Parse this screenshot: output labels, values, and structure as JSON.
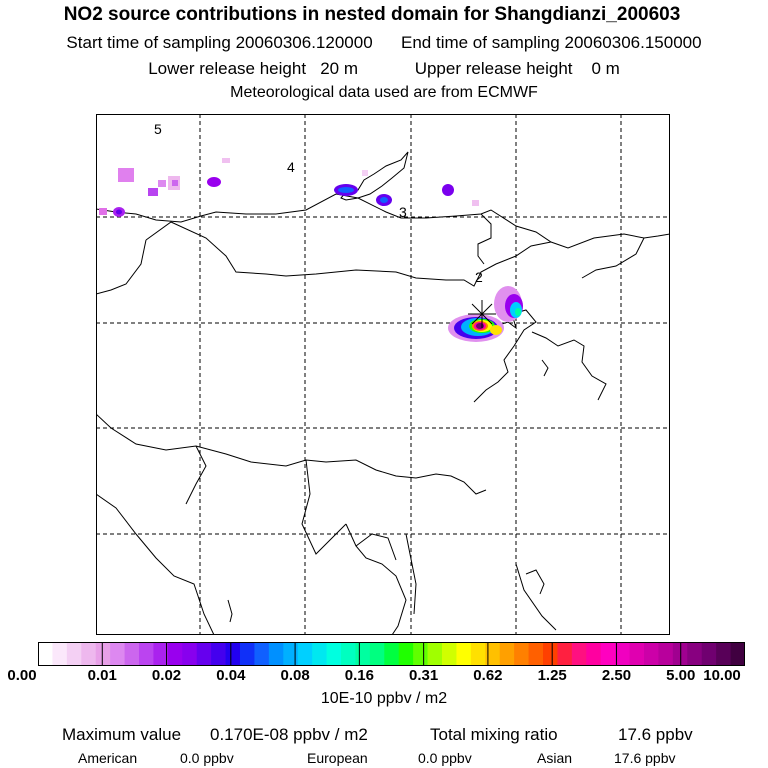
{
  "title": "NO2 source contributions in nested domain for Shangdianzi_200603",
  "sampling": {
    "start_label": "Start time of sampling",
    "start_value": "20060306.120000",
    "end_label": "End time of sampling",
    "end_value": "20060306.150000"
  },
  "release": {
    "lower_label": "Lower release height",
    "lower_value": "20 m",
    "upper_label": "Upper release height",
    "upper_value": "0 m"
  },
  "meteo": "Meteorological data used are from ECMWF",
  "map": {
    "region_labels": [
      "5",
      "4",
      "3",
      "2"
    ],
    "station_marker": "receptor-star"
  },
  "colorbar": {
    "tick_labels": [
      "0.00",
      "0.01",
      "0.02",
      "0.04",
      "0.08",
      "0.16",
      "0.31",
      "0.62",
      "1.25",
      "2.50",
      "5.00",
      "10.00"
    ],
    "colors": [
      "#ffffff",
      "#fbe8fb",
      "#f4d0f4",
      "#eeb8ee",
      "#e8a0e8",
      "#dd88f0",
      "#cc66ee",
      "#bb44f0",
      "#aa22ee",
      "#9900ee",
      "#8800ee",
      "#6600ee",
      "#4400ee",
      "#2200f0",
      "#1030f8",
      "#1060ff",
      "#0090ff",
      "#00b0ff",
      "#00d0ff",
      "#00e8f0",
      "#00ffe0",
      "#00ffc0",
      "#00ffa0",
      "#00ff80",
      "#00ff40",
      "#20ff00",
      "#60ff00",
      "#a0ff00",
      "#d0ff00",
      "#ffff00",
      "#ffe000",
      "#ffc000",
      "#ffa000",
      "#ff8000",
      "#ff6000",
      "#ff4000",
      "#ff2040",
      "#ff1080",
      "#ff00a0",
      "#ff00c0",
      "#f000c0",
      "#e000b0",
      "#cc00a8",
      "#b8009c",
      "#a00090",
      "#880080",
      "#700070",
      "#580058",
      "#400040"
    ],
    "units": "10E-10 ppbv / m2"
  },
  "summary": {
    "max_label": "Maximum value",
    "max_value": "0.170E-08 ppbv / m2",
    "total_label": "Total mixing ratio",
    "total_value": "17.6 ppbv",
    "regions": [
      {
        "name": "American",
        "value": "0.0 ppbv"
      },
      {
        "name": "European",
        "value": "0.0 ppbv"
      },
      {
        "name": "Asian",
        "value": "17.6 ppbv"
      }
    ]
  }
}
